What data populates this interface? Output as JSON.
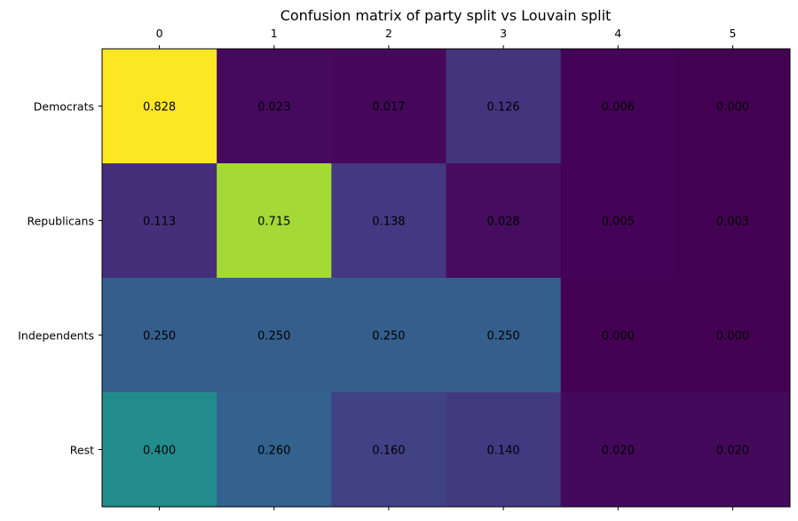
{
  "chart_data": {
    "type": "heatmap",
    "title": "Confusion matrix of party split vs Louvain split",
    "x_categories": [
      "0",
      "1",
      "2",
      "3",
      "4",
      "5"
    ],
    "y_categories": [
      "Democrats",
      "Republicans",
      "Independents",
      "Rest"
    ],
    "values": [
      [
        "0.828",
        "0.023",
        "0.017",
        "0.126",
        "0.006",
        "0.000"
      ],
      [
        "0.113",
        "0.715",
        "0.138",
        "0.028",
        "0.005",
        "0.003"
      ],
      [
        "0.250",
        "0.250",
        "0.250",
        "0.250",
        "0.000",
        "0.000"
      ],
      [
        "0.400",
        "0.260",
        "0.160",
        "0.140",
        "0.020",
        "0.020"
      ]
    ],
    "colormap": "viridis",
    "value_range": [
      0,
      0.828
    ],
    "x_axis_position": "top",
    "grid": false,
    "legend": "none"
  }
}
